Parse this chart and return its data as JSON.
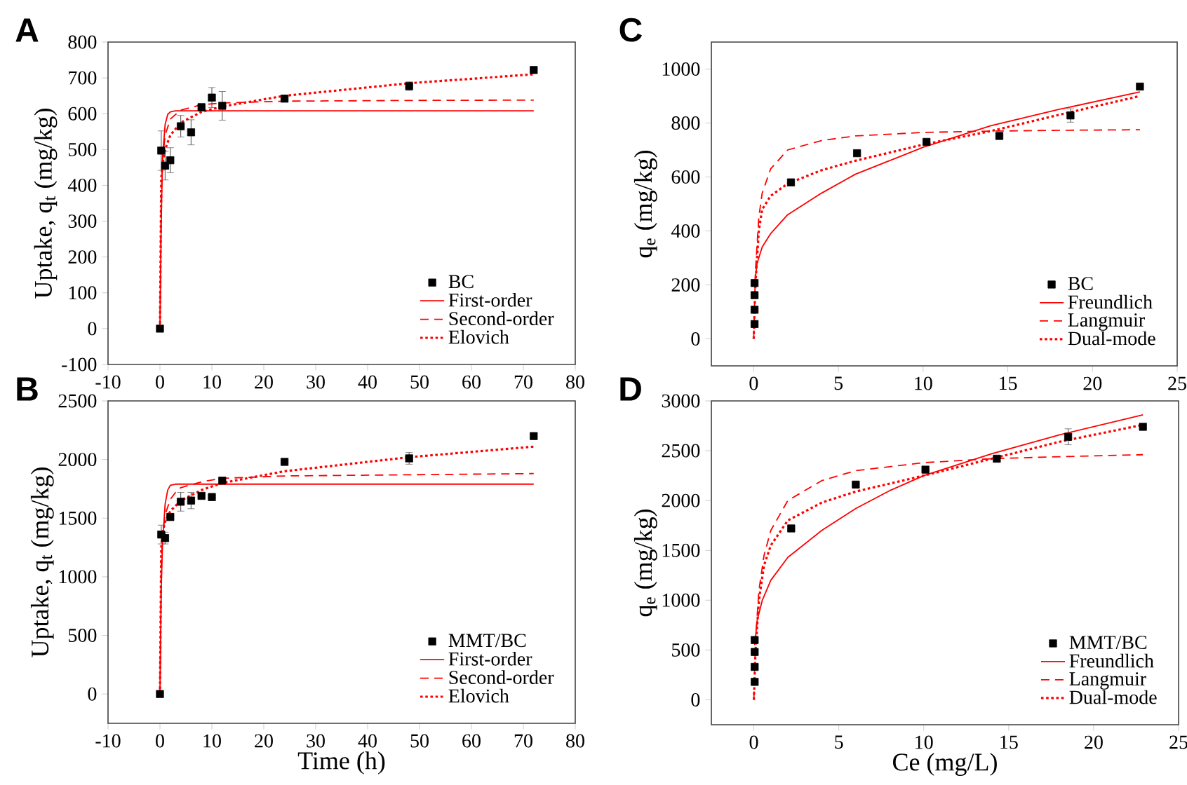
{
  "chart_data": [
    {
      "type": "scatter",
      "annotations": [
        "A"
      ],
      "ylabel": "Uptake, q$_{t}$ (mg/kg)",
      "xlim": [
        -10,
        80
      ],
      "ylim": [
        -100,
        800
      ],
      "xticks": [
        -10,
        0,
        10,
        20,
        30,
        40,
        50,
        60,
        70,
        80
      ],
      "yticks": [
        -100,
        0,
        100,
        200,
        300,
        400,
        500,
        600,
        700,
        800
      ],
      "legend": "bottom right",
      "marker": "square",
      "series": [
        {
          "name": "BC",
          "color": "#000000",
          "x": [
            0,
            0.25,
            1,
            2,
            4,
            6,
            8,
            10,
            12,
            24,
            48,
            72
          ],
          "values": [
            0,
            497,
            455,
            470,
            565,
            548,
            618,
            645,
            622,
            642,
            677,
            722
          ],
          "errors": [
            null,
            55,
            40,
            35,
            30,
            35,
            10,
            28,
            40,
            8,
            12,
            8
          ]
        },
        {
          "name": "First-order",
          "type": "line",
          "color": "#ff0000",
          "line_style": "solid",
          "marker": "none",
          "x": [
            0,
            0.25,
            0.5,
            1,
            1.5,
            2,
            3,
            12,
            72
          ],
          "values": [
            0,
            300,
            480,
            570,
            598,
            605,
            608,
            608,
            608
          ]
        },
        {
          "name": "Second-order",
          "type": "line",
          "color": "#ff0000",
          "line_style": "dashed",
          "marker": "none",
          "x": [
            0,
            0.25,
            0.5,
            1,
            2,
            4,
            8,
            12,
            24,
            48,
            72
          ],
          "values": [
            0,
            380,
            470,
            540,
            585,
            610,
            625,
            630,
            635,
            637,
            638
          ]
        },
        {
          "name": "Elovich",
          "type": "line",
          "color": "#ff0000",
          "line_style": "dotted",
          "marker": "none",
          "x": [
            0,
            0.25,
            0.5,
            1,
            2,
            4,
            8,
            12,
            24,
            48,
            72
          ],
          "values": [
            0,
            420,
            460,
            500,
            540,
            575,
            605,
            620,
            650,
            685,
            710
          ]
        }
      ]
    },
    {
      "type": "scatter",
      "annotations": [
        "B"
      ],
      "xlabel": "Time (h)",
      "ylabel": "Uptake, q$_{t}$ (mg/kg)",
      "xlim": [
        -10,
        80
      ],
      "ylim": [
        -250,
        2500
      ],
      "xticks": [
        -10,
        0,
        10,
        20,
        30,
        40,
        50,
        60,
        70,
        80
      ],
      "yticks": [
        0,
        500,
        1000,
        1500,
        2000,
        2500
      ],
      "legend": "bottom right",
      "marker": "square",
      "series": [
        {
          "name": "MMT/BC",
          "color": "#000000",
          "x": [
            0,
            0.25,
            1,
            2,
            4,
            6,
            8,
            10,
            12,
            24,
            48,
            72
          ],
          "values": [
            0,
            1360,
            1330,
            1510,
            1640,
            1650,
            1690,
            1680,
            1820,
            1980,
            2010,
            2200
          ],
          "errors": [
            null,
            80,
            50,
            30,
            80,
            70,
            20,
            30,
            15,
            15,
            50,
            20
          ]
        },
        {
          "name": "First-order",
          "type": "line",
          "color": "#ff0000",
          "line_style": "solid",
          "marker": "none",
          "x": [
            0,
            0.25,
            0.5,
            1,
            1.5,
            2,
            3,
            12,
            72
          ],
          "values": [
            0,
            900,
            1300,
            1620,
            1740,
            1780,
            1790,
            1790,
            1790
          ]
        },
        {
          "name": "Second-order",
          "type": "line",
          "color": "#ff0000",
          "line_style": "dashed",
          "marker": "none",
          "x": [
            0,
            0.25,
            0.5,
            1,
            2,
            3,
            4,
            8,
            12,
            24,
            48,
            72
          ],
          "values": [
            0,
            1100,
            1350,
            1530,
            1660,
            1720,
            1760,
            1810,
            1840,
            1860,
            1870,
            1880
          ]
        },
        {
          "name": "Elovich",
          "type": "line",
          "color": "#ff0000",
          "line_style": "dotted",
          "marker": "none",
          "x": [
            0,
            0.25,
            0.5,
            1,
            2,
            4,
            8,
            12,
            24,
            48,
            72
          ],
          "values": [
            0,
            1250,
            1380,
            1470,
            1560,
            1650,
            1740,
            1800,
            1900,
            2020,
            2110
          ]
        }
      ]
    },
    {
      "type": "scatter",
      "annotations": [
        "C"
      ],
      "ylabel": "q$_{e}$ (mg/kg)",
      "xlim": [
        -2.5,
        25
      ],
      "ylim": [
        -100,
        1100
      ],
      "xticks": [
        0,
        5,
        10,
        15,
        20,
        25
      ],
      "yticks": [
        0,
        200,
        400,
        600,
        800,
        1000
      ],
      "legend": "bottom right",
      "marker": "square",
      "series": [
        {
          "name": "BC",
          "color": "#000000",
          "x": [
            0.05,
            0.05,
            0.05,
            0.05,
            2.2,
            6.1,
            10.2,
            14.5,
            18.7,
            22.8
          ],
          "values": [
            55,
            108,
            162,
            207,
            580,
            688,
            730,
            752,
            828,
            935
          ],
          "errors": [
            null,
            null,
            null,
            null,
            null,
            null,
            null,
            null,
            25,
            null
          ]
        },
        {
          "name": "Freundlich",
          "type": "line",
          "color": "#ff0000",
          "line_style": "solid",
          "marker": "none",
          "x": [
            0.05,
            0.2,
            0.5,
            1,
            2,
            4,
            6,
            8,
            10,
            14,
            18,
            22.8
          ],
          "values": [
            200,
            280,
            340,
            390,
            460,
            540,
            610,
            660,
            710,
            790,
            850,
            915
          ]
        },
        {
          "name": "Langmuir",
          "type": "line",
          "color": "#ff0000",
          "line_style": "dashed",
          "marker": "none",
          "x": [
            0,
            0.1,
            0.3,
            0.5,
            1,
            2,
            4,
            6,
            10,
            14,
            18,
            22.8
          ],
          "values": [
            0,
            250,
            450,
            540,
            630,
            700,
            735,
            752,
            765,
            770,
            773,
            775
          ]
        },
        {
          "name": "Dual-mode",
          "type": "line",
          "color": "#ff0000",
          "line_style": "dotted",
          "marker": "none",
          "x": [
            0,
            0.1,
            0.3,
            0.5,
            1,
            2,
            4,
            6,
            10,
            14,
            18,
            22.8
          ],
          "values": [
            0,
            200,
            400,
            480,
            530,
            575,
            625,
            660,
            720,
            770,
            830,
            900
          ]
        }
      ]
    },
    {
      "type": "scatter",
      "annotations": [
        "D"
      ],
      "xlabel": "Ce (mg/L)",
      "ylabel": "q$_{e}$ (mg/kg)",
      "xlim": [
        -2.5,
        25
      ],
      "ylim": [
        -250,
        3000
      ],
      "xticks": [
        0,
        5,
        10,
        15,
        20,
        25
      ],
      "yticks": [
        0,
        500,
        1000,
        1500,
        2000,
        2500,
        3000
      ],
      "legend": "bottom right",
      "marker": "square",
      "series": [
        {
          "name": "MMT/BC",
          "color": "#000000",
          "x": [
            0.05,
            0.05,
            0.05,
            0.05,
            2.2,
            6,
            10.1,
            14.3,
            18.5,
            22.9
          ],
          "values": [
            180,
            330,
            480,
            600,
            1720,
            2160,
            2310,
            2420,
            2640,
            2740
          ],
          "errors": [
            null,
            null,
            null,
            null,
            null,
            null,
            null,
            null,
            80,
            null
          ]
        },
        {
          "name": "Freundlich",
          "type": "line",
          "color": "#ff0000",
          "line_style": "solid",
          "marker": "none",
          "x": [
            0.05,
            0.2,
            0.5,
            1,
            2,
            4,
            6,
            8,
            10,
            14,
            18,
            22.9
          ],
          "values": [
            550,
            800,
            1000,
            1200,
            1430,
            1700,
            1920,
            2100,
            2250,
            2470,
            2660,
            2860
          ]
        },
        {
          "name": "Langmuir",
          "type": "line",
          "color": "#ff0000",
          "line_style": "dashed",
          "marker": "none",
          "x": [
            0,
            0.1,
            0.3,
            0.6,
            1,
            2,
            4,
            6,
            10,
            14,
            18,
            22.9
          ],
          "values": [
            0,
            600,
            1100,
            1450,
            1700,
            2000,
            2200,
            2300,
            2380,
            2420,
            2440,
            2460
          ]
        },
        {
          "name": "Dual-mode",
          "type": "line",
          "color": "#ff0000",
          "line_style": "dotted",
          "marker": "none",
          "x": [
            0,
            0.1,
            0.3,
            0.6,
            1,
            2,
            4,
            6,
            10,
            14,
            18,
            22.9
          ],
          "values": [
            0,
            500,
            1000,
            1350,
            1550,
            1800,
            1980,
            2090,
            2250,
            2420,
            2590,
            2760
          ]
        }
      ]
    }
  ]
}
